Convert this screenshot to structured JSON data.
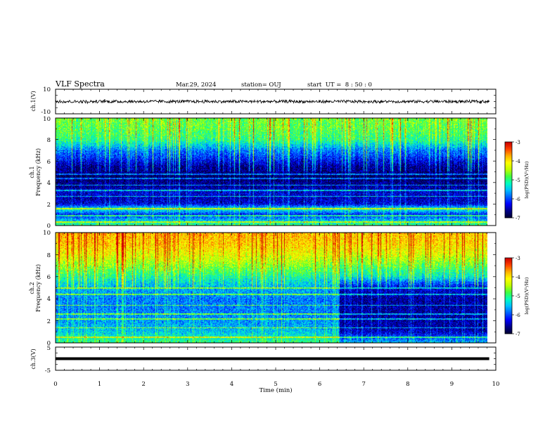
{
  "header": {
    "title": "VLF Spectra",
    "date": "Mar.29, 2024",
    "station": "station= OUJ",
    "start": "start  UT =  8 : 50 : 0"
  },
  "colors": {
    "palette": [
      "#000033",
      "#00008b",
      "#0000ff",
      "#0060ff",
      "#00c0ff",
      "#00ffc0",
      "#40ff40",
      "#c0ff00",
      "#ffff00",
      "#ffb000",
      "#ff4000",
      "#cc0000"
    ]
  },
  "chart_data": [
    {
      "type": "line",
      "panel": "ch1-waveform",
      "ylabel": "ch.1(V)",
      "ylim": [
        -10,
        10
      ],
      "yticks": [
        "10",
        "-10"
      ],
      "baseline_value": 0,
      "noise_amplitude": 1.2
    },
    {
      "type": "heatmap",
      "panel": "ch1-spectrogram",
      "ylabel_line1": "ch.1",
      "ylabel_line2": "Frequency (kHz)",
      "ylim": [
        0,
        10
      ],
      "yticks": [
        "0",
        "2",
        "4",
        "6",
        "8",
        "10"
      ],
      "colorbar": {
        "label": "log(PSD)(V²/Hz)",
        "range": [
          -7,
          -3
        ],
        "ticks": [
          "-3",
          "-4",
          "-5",
          "-6",
          "-7"
        ]
      },
      "profile_khz": [
        [
          0.0,
          -5.0
        ],
        [
          0.5,
          -5.6
        ],
        [
          1.0,
          -6.2
        ],
        [
          1.5,
          -5.2
        ],
        [
          2.0,
          -6.4
        ],
        [
          2.5,
          -6.5
        ],
        [
          3.0,
          -6.4
        ],
        [
          3.5,
          -6.6
        ],
        [
          4.0,
          -6.7
        ],
        [
          4.5,
          -6.9
        ],
        [
          5.0,
          -6.7
        ],
        [
          5.5,
          -6.6
        ],
        [
          6.0,
          -6.3
        ],
        [
          6.5,
          -6.0
        ],
        [
          7.0,
          -5.8
        ],
        [
          7.5,
          -5.4
        ],
        [
          8.0,
          -5.0
        ],
        [
          9.0,
          -4.8
        ],
        [
          10.0,
          -4.7
        ]
      ],
      "lines_khz": [
        0.3,
        0.9,
        1.55,
        2.7,
        3.25,
        3.75,
        4.35,
        4.75
      ]
    },
    {
      "type": "heatmap",
      "panel": "ch2-spectrogram",
      "ylabel_line1": "ch.2",
      "ylabel_line2": "Frequency (kHz)",
      "ylim": [
        0,
        10
      ],
      "yticks": [
        "0",
        "2",
        "4",
        "6",
        "8",
        "10"
      ],
      "colorbar": {
        "label": "log(PSD)(V²/Hz)",
        "range": [
          -7,
          -3
        ],
        "ticks": [
          "-3",
          "-4",
          "-5",
          "-6",
          "-7"
        ]
      },
      "change_minute": 6.45,
      "profile_before_khz": [
        [
          0.0,
          -5.0
        ],
        [
          1.0,
          -5.5
        ],
        [
          2.0,
          -5.7
        ],
        [
          3.0,
          -5.8
        ],
        [
          4.0,
          -5.8
        ],
        [
          5.0,
          -5.6
        ],
        [
          6.0,
          -5.1
        ],
        [
          7.0,
          -4.6
        ],
        [
          8.0,
          -4.2
        ],
        [
          9.0,
          -3.9
        ],
        [
          10.0,
          -3.8
        ]
      ],
      "profile_after_khz": [
        [
          0.0,
          -5.6
        ],
        [
          1.0,
          -6.5
        ],
        [
          2.0,
          -6.6
        ],
        [
          3.0,
          -6.6
        ],
        [
          4.0,
          -6.6
        ],
        [
          5.0,
          -6.4
        ],
        [
          6.0,
          -5.3
        ],
        [
          7.0,
          -4.8
        ],
        [
          8.0,
          -4.3
        ],
        [
          9.0,
          -4.0
        ],
        [
          10.0,
          -3.9
        ]
      ],
      "lines_khz": [
        0.5,
        1.35,
        2.15,
        2.6,
        3.4,
        4.4,
        4.95
      ]
    },
    {
      "type": "line",
      "panel": "ch3-waveform",
      "ylabel": "ch.3(V)",
      "ylim": [
        -5,
        5
      ],
      "yticks": [
        "5",
        "-5"
      ],
      "baseline_value": 0
    }
  ],
  "xaxis": {
    "label": "Time (min)",
    "range": [
      0,
      10
    ],
    "ticks": [
      "0",
      "1",
      "2",
      "3",
      "4",
      "5",
      "6",
      "7",
      "8",
      "9",
      "10"
    ],
    "data_end_minute": 9.85
  }
}
